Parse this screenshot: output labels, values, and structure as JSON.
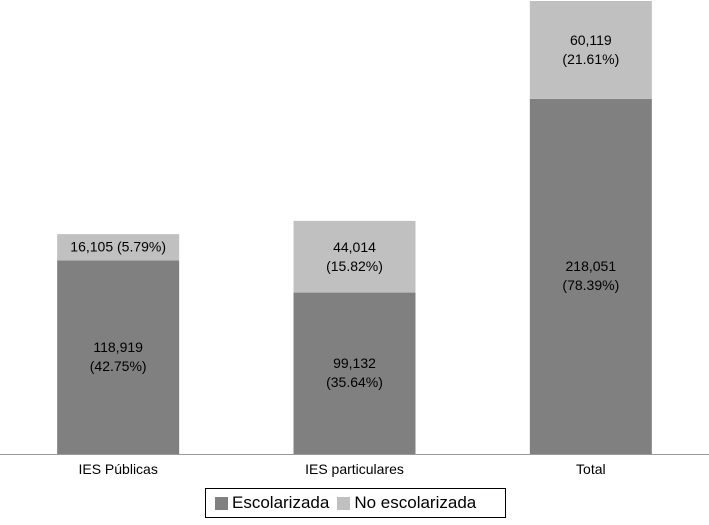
{
  "chart_data": {
    "type": "bar",
    "stacked": true,
    "categories": [
      "IES Públicas",
      "IES particulares",
      "Total"
    ],
    "series": [
      {
        "name": "Escolarizada",
        "color": "#808080",
        "values": [
          118919,
          99132,
          218051
        ],
        "labels": [
          "118,919\n(42.75%)",
          "99,132\n(35.64%)",
          "218,051\n(78.39%)"
        ]
      },
      {
        "name": "No escolarizada",
        "color": "#c0c0c0",
        "values": [
          16105,
          44014,
          60119
        ],
        "labels": [
          "16,105 (5.79%)",
          "44,014\n(15.82%)",
          "60,119\n(21.61%)"
        ]
      }
    ],
    "ylim": [
      0,
      278170
    ],
    "grid": false,
    "legend_position": "bottom"
  }
}
